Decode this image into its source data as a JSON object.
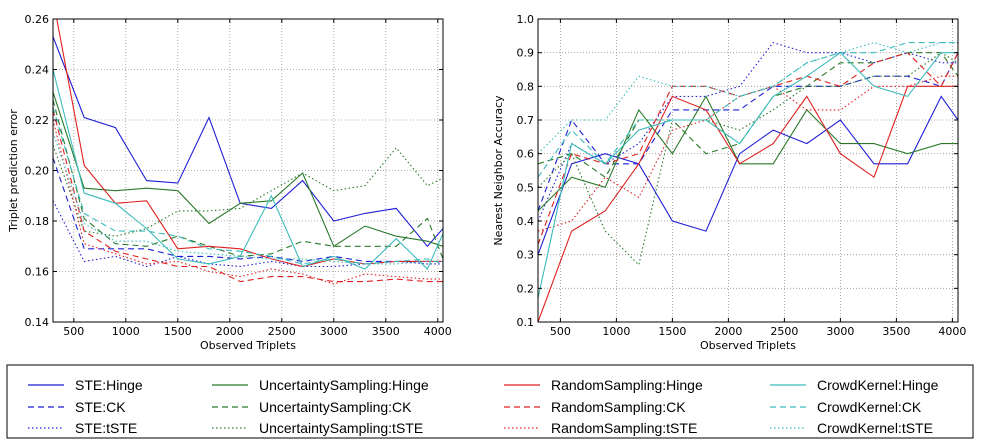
{
  "chart_data": [
    {
      "type": "line",
      "title": "",
      "xlabel": "Observed Triplets",
      "ylabel": "Triplet prediction error",
      "xlim": [
        300,
        4050
      ],
      "ylim": [
        0.14,
        0.26
      ],
      "xticks": [
        500,
        1000,
        1500,
        2000,
        2500,
        3000,
        3500,
        4000
      ],
      "yticks": [
        0.14,
        0.16,
        0.18,
        0.2,
        0.22,
        0.24,
        0.26
      ],
      "grid": true,
      "x": [
        300,
        600,
        900,
        1200,
        1500,
        1800,
        2100,
        2400,
        2700,
        3000,
        3300,
        3600,
        3900,
        4050
      ],
      "series": [
        {
          "name": "STE:Hinge",
          "color": "#1f1fd6",
          "dash": "solid",
          "values": [
            0.253,
            0.221,
            0.217,
            0.196,
            0.195,
            0.221,
            0.187,
            0.185,
            0.196,
            0.18,
            0.183,
            0.185,
            0.17,
            0.177
          ]
        },
        {
          "name": "STE:CK",
          "color": "#1f1fd6",
          "dash": "dashed",
          "values": [
            0.205,
            0.169,
            0.169,
            0.169,
            0.166,
            0.166,
            0.165,
            0.166,
            0.164,
            0.166,
            0.164,
            0.164,
            0.164,
            0.164
          ]
        },
        {
          "name": "STE:tSTE",
          "color": "#1f1fd6",
          "dash": "dotted",
          "values": [
            0.188,
            0.164,
            0.166,
            0.162,
            0.166,
            0.163,
            0.162,
            0.164,
            0.162,
            0.162,
            0.163,
            0.164,
            0.163,
            0.163
          ]
        },
        {
          "name": "UncertaintySampling:Hinge",
          "color": "#2a7a2a",
          "dash": "solid",
          "values": [
            0.231,
            0.193,
            0.192,
            0.193,
            0.192,
            0.179,
            0.187,
            0.188,
            0.199,
            0.17,
            0.178,
            0.174,
            0.172,
            0.17
          ]
        },
        {
          "name": "UncertaintySampling:CK",
          "color": "#2a7a2a",
          "dash": "dashed",
          "values": [
            0.228,
            0.181,
            0.171,
            0.17,
            0.174,
            0.17,
            0.166,
            0.167,
            0.172,
            0.17,
            0.17,
            0.17,
            0.181,
            0.165
          ]
        },
        {
          "name": "UncertaintySampling:tSTE",
          "color": "#2a7a2a",
          "dash": "dotted",
          "values": [
            0.21,
            0.176,
            0.174,
            0.177,
            0.184,
            0.184,
            0.185,
            0.192,
            0.199,
            0.192,
            0.194,
            0.209,
            0.194,
            0.197
          ]
        },
        {
          "name": "RandomSampling:Hinge",
          "color": "#e02020",
          "dash": "solid",
          "values": [
            0.268,
            0.202,
            0.187,
            0.188,
            0.169,
            0.17,
            0.169,
            0.165,
            0.162,
            0.165,
            0.163,
            0.164,
            0.164,
            0.164
          ]
        },
        {
          "name": "RandomSampling:CK",
          "color": "#e02020",
          "dash": "dashed",
          "values": [
            0.224,
            0.176,
            0.168,
            0.165,
            0.162,
            0.162,
            0.156,
            0.158,
            0.158,
            0.156,
            0.156,
            0.157,
            0.156,
            0.156
          ]
        },
        {
          "name": "RandomSampling:tSTE",
          "color": "#e02020",
          "dash": "dotted",
          "values": [
            0.22,
            0.171,
            0.167,
            0.163,
            0.164,
            0.16,
            0.158,
            0.161,
            0.159,
            0.155,
            0.159,
            0.158,
            0.157,
            0.157
          ]
        },
        {
          "name": "CrowdKernel:Hinge",
          "color": "#3cbcbc",
          "dash": "solid",
          "values": [
            0.24,
            0.191,
            0.187,
            0.177,
            0.165,
            0.163,
            0.166,
            0.19,
            0.162,
            0.166,
            0.161,
            0.173,
            0.161,
            0.175
          ]
        },
        {
          "name": "CrowdKernel:CK",
          "color": "#3cbcbc",
          "dash": "dashed",
          "values": [
            0.225,
            0.183,
            0.176,
            0.176,
            0.174,
            0.169,
            0.168,
            0.166,
            0.163,
            0.165,
            0.163,
            0.164,
            0.165,
            0.163
          ]
        },
        {
          "name": "CrowdKernel:tSTE",
          "color": "#3cbcbc",
          "dash": "dotted",
          "values": [
            0.215,
            0.179,
            0.172,
            0.172,
            0.168,
            0.167,
            0.166,
            0.165,
            0.165,
            0.164,
            0.163,
            0.163,
            0.164,
            0.164
          ]
        }
      ]
    },
    {
      "type": "line",
      "title": "",
      "xlabel": "Observed Triplets",
      "ylabel": "Nearest Neighbor Accuracy",
      "xlim": [
        300,
        4050
      ],
      "ylim": [
        0.1,
        1.0
      ],
      "xticks": [
        500,
        1000,
        1500,
        2000,
        2500,
        3000,
        3500,
        4000
      ],
      "yticks": [
        0.1,
        0.2,
        0.3,
        0.4,
        0.5,
        0.6,
        0.7,
        0.8,
        0.9,
        1.0
      ],
      "grid": true,
      "x": [
        300,
        600,
        900,
        1200,
        1500,
        1800,
        2100,
        2400,
        2700,
        3000,
        3300,
        3600,
        3900,
        4050
      ],
      "series": [
        {
          "name": "STE:Hinge",
          "color": "#1f1fd6",
          "dash": "solid",
          "values": [
            0.3,
            0.57,
            0.6,
            0.57,
            0.4,
            0.37,
            0.6,
            0.67,
            0.63,
            0.7,
            0.57,
            0.57,
            0.77,
            0.7
          ]
        },
        {
          "name": "STE:CK",
          "color": "#1f1fd6",
          "dash": "dashed",
          "values": [
            0.43,
            0.7,
            0.57,
            0.57,
            0.73,
            0.73,
            0.73,
            0.8,
            0.8,
            0.8,
            0.83,
            0.83,
            0.8,
            0.9
          ]
        },
        {
          "name": "STE:tSTE",
          "color": "#1f1fd6",
          "dash": "dotted",
          "values": [
            0.4,
            0.63,
            0.57,
            0.63,
            0.77,
            0.77,
            0.8,
            0.93,
            0.9,
            0.9,
            0.87,
            0.9,
            0.87,
            0.87
          ]
        },
        {
          "name": "UncertaintySampling:Hinge",
          "color": "#2a7a2a",
          "dash": "solid",
          "values": [
            0.43,
            0.53,
            0.5,
            0.73,
            0.6,
            0.77,
            0.57,
            0.57,
            0.73,
            0.63,
            0.63,
            0.6,
            0.63,
            0.63
          ]
        },
        {
          "name": "UncertaintySampling:CK",
          "color": "#2a7a2a",
          "dash": "dashed",
          "values": [
            0.57,
            0.6,
            0.53,
            0.7,
            0.7,
            0.6,
            0.63,
            0.77,
            0.8,
            0.87,
            0.87,
            0.9,
            0.9,
            0.83
          ]
        },
        {
          "name": "UncertaintySampling:tSTE",
          "color": "#2a7a2a",
          "dash": "dotted",
          "values": [
            0.5,
            0.6,
            0.37,
            0.27,
            0.7,
            0.7,
            0.67,
            0.73,
            0.8,
            0.8,
            0.83,
            0.83,
            0.9,
            0.87
          ]
        },
        {
          "name": "RandomSampling:Hinge",
          "color": "#e02020",
          "dash": "solid",
          "values": [
            0.1,
            0.37,
            0.43,
            0.57,
            0.77,
            0.73,
            0.57,
            0.63,
            0.77,
            0.6,
            0.53,
            0.8,
            0.8,
            0.8
          ]
        },
        {
          "name": "RandomSampling:CK",
          "color": "#e02020",
          "dash": "dashed",
          "values": [
            0.33,
            0.6,
            0.57,
            0.6,
            0.8,
            0.8,
            0.77,
            0.8,
            0.83,
            0.8,
            0.87,
            0.9,
            0.8,
            0.9
          ]
        },
        {
          "name": "RandomSampling:tSTE",
          "color": "#e02020",
          "dash": "dotted",
          "values": [
            0.37,
            0.4,
            0.53,
            0.47,
            0.67,
            0.7,
            0.77,
            0.8,
            0.73,
            0.73,
            0.8,
            0.8,
            0.83,
            0.83
          ]
        },
        {
          "name": "CrowdKernel:Hinge",
          "color": "#3cbcbc",
          "dash": "solid",
          "values": [
            0.17,
            0.63,
            0.57,
            0.67,
            0.7,
            0.7,
            0.63,
            0.77,
            0.83,
            0.9,
            0.8,
            0.77,
            0.9,
            0.9
          ]
        },
        {
          "name": "CrowdKernel:CK",
          "color": "#3cbcbc",
          "dash": "dashed",
          "values": [
            0.53,
            0.67,
            0.57,
            0.7,
            0.7,
            0.7,
            0.77,
            0.8,
            0.87,
            0.9,
            0.9,
            0.93,
            0.93,
            0.93
          ]
        },
        {
          "name": "CrowdKernel:tSTE",
          "color": "#3cbcbc",
          "dash": "dotted",
          "values": [
            0.6,
            0.7,
            0.7,
            0.83,
            0.8,
            0.8,
            0.77,
            0.8,
            0.87,
            0.9,
            0.93,
            0.9,
            0.93,
            0.93
          ]
        }
      ]
    }
  ],
  "legend": {
    "placement": "bottom",
    "entries": [
      {
        "label": "STE:Hinge",
        "color": "#1f1fd6",
        "dash": "solid"
      },
      {
        "label": "UncertaintySampling:Hinge",
        "color": "#2a7a2a",
        "dash": "solid"
      },
      {
        "label": "RandomSampling:Hinge",
        "color": "#e02020",
        "dash": "solid"
      },
      {
        "label": "CrowdKernel:Hinge",
        "color": "#3cbcbc",
        "dash": "solid"
      },
      {
        "label": "STE:CK",
        "color": "#1f1fd6",
        "dash": "dashed"
      },
      {
        "label": "UncertaintySampling:CK",
        "color": "#2a7a2a",
        "dash": "dashed"
      },
      {
        "label": "RandomSampling:CK",
        "color": "#e02020",
        "dash": "dashed"
      },
      {
        "label": "CrowdKernel:CK",
        "color": "#3cbcbc",
        "dash": "dashed"
      },
      {
        "label": "STE:tSTE",
        "color": "#1f1fd6",
        "dash": "dotted"
      },
      {
        "label": "UncertaintySampling:tSTE",
        "color": "#2a7a2a",
        "dash": "dotted"
      },
      {
        "label": "RandomSampling:tSTE",
        "color": "#e02020",
        "dash": "dotted"
      },
      {
        "label": "CrowdKernel:tSTE",
        "color": "#3cbcbc",
        "dash": "dotted"
      }
    ]
  }
}
